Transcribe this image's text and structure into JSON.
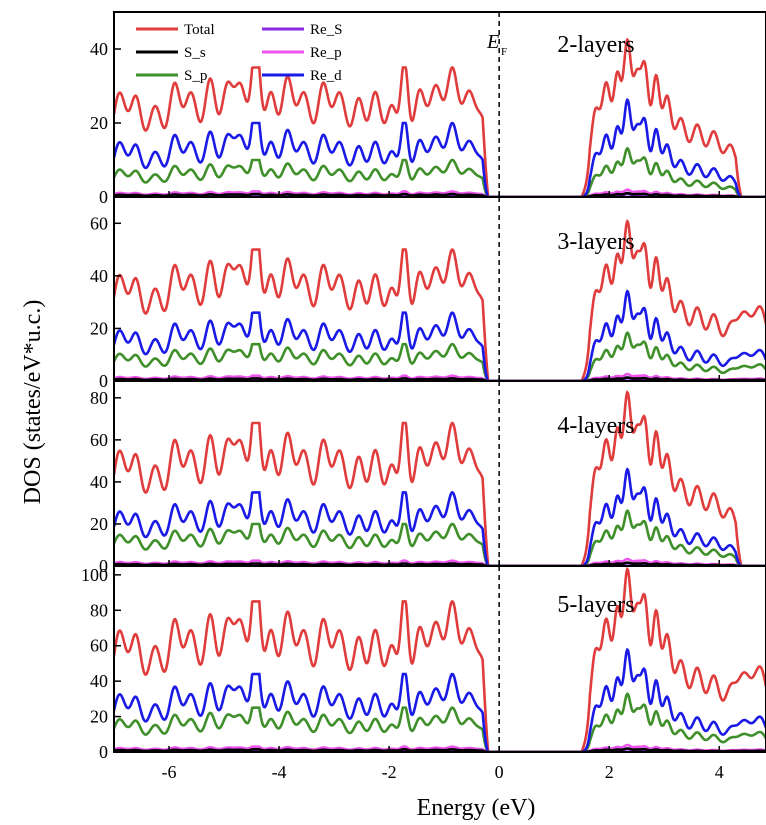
{
  "chart_data": [
    {
      "type": "line",
      "panel_label": "2-layers",
      "ylim": [
        0,
        50
      ],
      "yticks": [
        0,
        20,
        40
      ],
      "series_peaks": {
        "Total": 35,
        "S_s": 0.8,
        "S_p": 10,
        "Re_S": 0.6,
        "Re_p": 1.5,
        "Re_d": 20
      }
    },
    {
      "type": "line",
      "panel_label": "3-layers",
      "ylim": [
        0,
        70
      ],
      "yticks": [
        0,
        20,
        40,
        60
      ],
      "series_peaks": {
        "Total": 50,
        "S_s": 1,
        "S_p": 14,
        "Re_S": 0.8,
        "Re_p": 2,
        "Re_d": 26
      }
    },
    {
      "type": "line",
      "panel_label": "4-layers",
      "ylim": [
        0,
        88
      ],
      "yticks": [
        0,
        20,
        40,
        60,
        80
      ],
      "series_peaks": {
        "Total": 68,
        "S_s": 1.2,
        "S_p": 20,
        "Re_S": 1,
        "Re_p": 2.5,
        "Re_d": 35
      }
    },
    {
      "type": "line",
      "panel_label": "5-layers",
      "ylim": [
        0,
        105
      ],
      "yticks": [
        0,
        20,
        40,
        60,
        80,
        100
      ],
      "series_peaks": {
        "Total": 85,
        "S_s": 1.5,
        "S_p": 25,
        "Re_S": 1.2,
        "Re_p": 3,
        "Re_d": 44
      }
    }
  ],
  "axes": {
    "xlabel": "Energy (eV)",
    "ylabel": "DOS (states/eV*u.c.)",
    "xlim": [
      -7,
      4.85
    ],
    "xticks": [
      -6,
      -4,
      -2,
      0,
      2,
      4
    ],
    "xtick_labels": [
      "-6",
      "-4",
      "-2",
      "0",
      "2",
      "4"
    ],
    "fermi_level": 0,
    "fermi_label": "E",
    "fermi_sub": "F"
  },
  "legend": {
    "placement": "top-left of top panel",
    "entries": [
      {
        "name": "Total",
        "color": "#e03c3c"
      },
      {
        "name": "S_s",
        "color": "#000000"
      },
      {
        "name": "S_p",
        "color": "#3f8f2a"
      },
      {
        "name": "Re_S",
        "color": "#8a2be2"
      },
      {
        "name": "Re_p",
        "color": "#ee55ee"
      },
      {
        "name": "Re_d",
        "color": "#1a1ae6"
      }
    ]
  },
  "colors": {
    "Total": "#e03c3c",
    "S_s": "#000000",
    "S_p": "#3f8f2a",
    "Re_S": "#8a2be2",
    "Re_p": "#ee55ee",
    "Re_d": "#1a1ae6"
  }
}
